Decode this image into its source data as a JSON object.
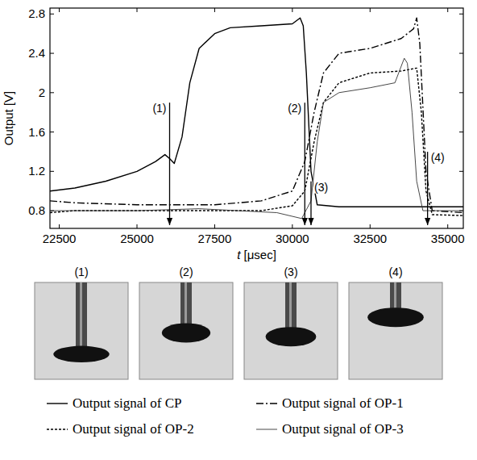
{
  "chart_data": {
    "type": "line",
    "x_label": "t [μsec]",
    "y_label": "Output [V]",
    "xlim": [
      22200,
      35500
    ],
    "xticks": [
      22500,
      25000,
      27500,
      30000,
      32500,
      35000
    ],
    "ylim": [
      0.62,
      2.86
    ],
    "yticks": [
      0.8,
      1.2,
      1.6,
      2,
      2.4,
      2.8
    ],
    "grid": false,
    "legend": "bottom",
    "series": [
      {
        "name": "Output signal of CP",
        "color": "#000000",
        "line_style": "solid",
        "x": [
          22200,
          23000,
          24000,
          25000,
          25600,
          25900,
          26050,
          26200,
          26450,
          26700,
          27000,
          27500,
          28000,
          29000,
          30000,
          30250,
          30350,
          30450,
          30600,
          30800,
          31500,
          35500
        ],
        "values": [
          1.0,
          1.03,
          1.1,
          1.2,
          1.3,
          1.37,
          1.33,
          1.28,
          1.55,
          2.1,
          2.45,
          2.6,
          2.66,
          2.68,
          2.7,
          2.76,
          2.68,
          2.2,
          1.2,
          0.86,
          0.84,
          0.84
        ]
      },
      {
        "name": "Output signal of OP-1",
        "color": "#000000",
        "line_style": "dashdot",
        "x": [
          22200,
          23000,
          25000,
          27500,
          29000,
          30000,
          30400,
          30700,
          31000,
          31500,
          32500,
          33500,
          33900,
          34000,
          34100,
          34300,
          34500,
          35500
        ],
        "values": [
          0.9,
          0.88,
          0.86,
          0.86,
          0.9,
          1.0,
          1.3,
          1.8,
          2.2,
          2.4,
          2.45,
          2.55,
          2.65,
          2.76,
          2.5,
          1.2,
          0.8,
          0.78
        ]
      },
      {
        "name": "Output signal of OP-2",
        "color": "#000000",
        "line_style": "dashed",
        "x": [
          22200,
          23000,
          25000,
          27500,
          29000,
          30000,
          30400,
          30700,
          31000,
          31500,
          32500,
          33500,
          34000,
          34150,
          34300,
          34500,
          35500
        ],
        "values": [
          0.78,
          0.8,
          0.8,
          0.8,
          0.8,
          0.85,
          1.0,
          1.5,
          1.9,
          2.1,
          2.2,
          2.22,
          2.25,
          1.8,
          1.0,
          0.76,
          0.75
        ]
      },
      {
        "name": "Output signal of OP-3",
        "color": "#333333",
        "line_style": "thin",
        "x": [
          22200,
          25000,
          27000,
          29500,
          30300,
          30600,
          30800,
          31000,
          31500,
          32500,
          33300,
          33600,
          33700,
          33850,
          34000,
          34200,
          35500
        ],
        "values": [
          0.8,
          0.8,
          0.82,
          0.78,
          0.72,
          0.9,
          1.5,
          1.9,
          2.0,
          2.05,
          2.1,
          2.35,
          2.3,
          1.8,
          1.1,
          0.8,
          0.8
        ]
      }
    ],
    "annotations": [
      {
        "label": "(1)",
        "x": 26050,
        "y": 1.8
      },
      {
        "label": "(2)",
        "x": 30400,
        "y": 1.8
      },
      {
        "label": "(3)",
        "x": 30600,
        "y": 1.0
      },
      {
        "label": "(4)",
        "x": 34350,
        "y": 1.3
      }
    ]
  },
  "images": {
    "labels": [
      "(1)",
      "(2)",
      "(3)",
      "(4)"
    ]
  }
}
